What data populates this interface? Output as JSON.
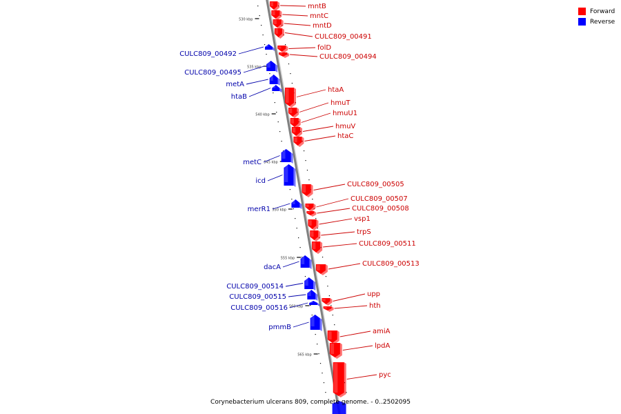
{
  "caption": "Corynebacterium ulcerans 809, complete genome. - 0..2502095",
  "legend": [
    {
      "label": "Forward",
      "color": "#ff0000"
    },
    {
      "label": "Reverse",
      "color": "#0000ff"
    }
  ],
  "colors": {
    "forward": "#ff0000",
    "reverse": "#0000ff",
    "backbone": "#808080",
    "forward_label": "#cc0000",
    "reverse_label": "#0000aa"
  },
  "kbp_ticks": [
    {
      "label": "530 kbp"
    },
    {
      "label": "535 kbp"
    },
    {
      "label": "540 kbp"
    },
    {
      "label": "545 kbp"
    },
    {
      "label": "550 kbp"
    },
    {
      "label": "555 kbp"
    },
    {
      "label": "560 kbp"
    },
    {
      "label": "565 kbp"
    }
  ],
  "forward_genes": [
    {
      "name": "mntB"
    },
    {
      "name": "mntC"
    },
    {
      "name": "mntD"
    },
    {
      "name": "CULC809_00491"
    },
    {
      "name": "folD"
    },
    {
      "name": "CULC809_00494"
    },
    {
      "name": "htaA"
    },
    {
      "name": "hmuT"
    },
    {
      "name": "hmuU1"
    },
    {
      "name": "hmuV"
    },
    {
      "name": "htaC"
    },
    {
      "name": "CULC809_00505"
    },
    {
      "name": "CULC809_00507"
    },
    {
      "name": "CULC809_00508"
    },
    {
      "name": "vsp1"
    },
    {
      "name": "trpS"
    },
    {
      "name": "CULC809_00511"
    },
    {
      "name": "CULC809_00513"
    },
    {
      "name": "upp"
    },
    {
      "name": "hth"
    },
    {
      "name": "amiA"
    },
    {
      "name": "lpdA"
    },
    {
      "name": "pyc"
    }
  ],
  "reverse_genes": [
    {
      "name": "CULC809_00492"
    },
    {
      "name": "CULC809_00495"
    },
    {
      "name": "metA"
    },
    {
      "name": "htaB"
    },
    {
      "name": "metC"
    },
    {
      "name": "icd"
    },
    {
      "name": "merR1"
    },
    {
      "name": "dacA"
    },
    {
      "name": "CULC809_00514"
    },
    {
      "name": "CULC809_00515"
    },
    {
      "name": "CULC809_00516"
    },
    {
      "name": "pmmB"
    }
  ]
}
